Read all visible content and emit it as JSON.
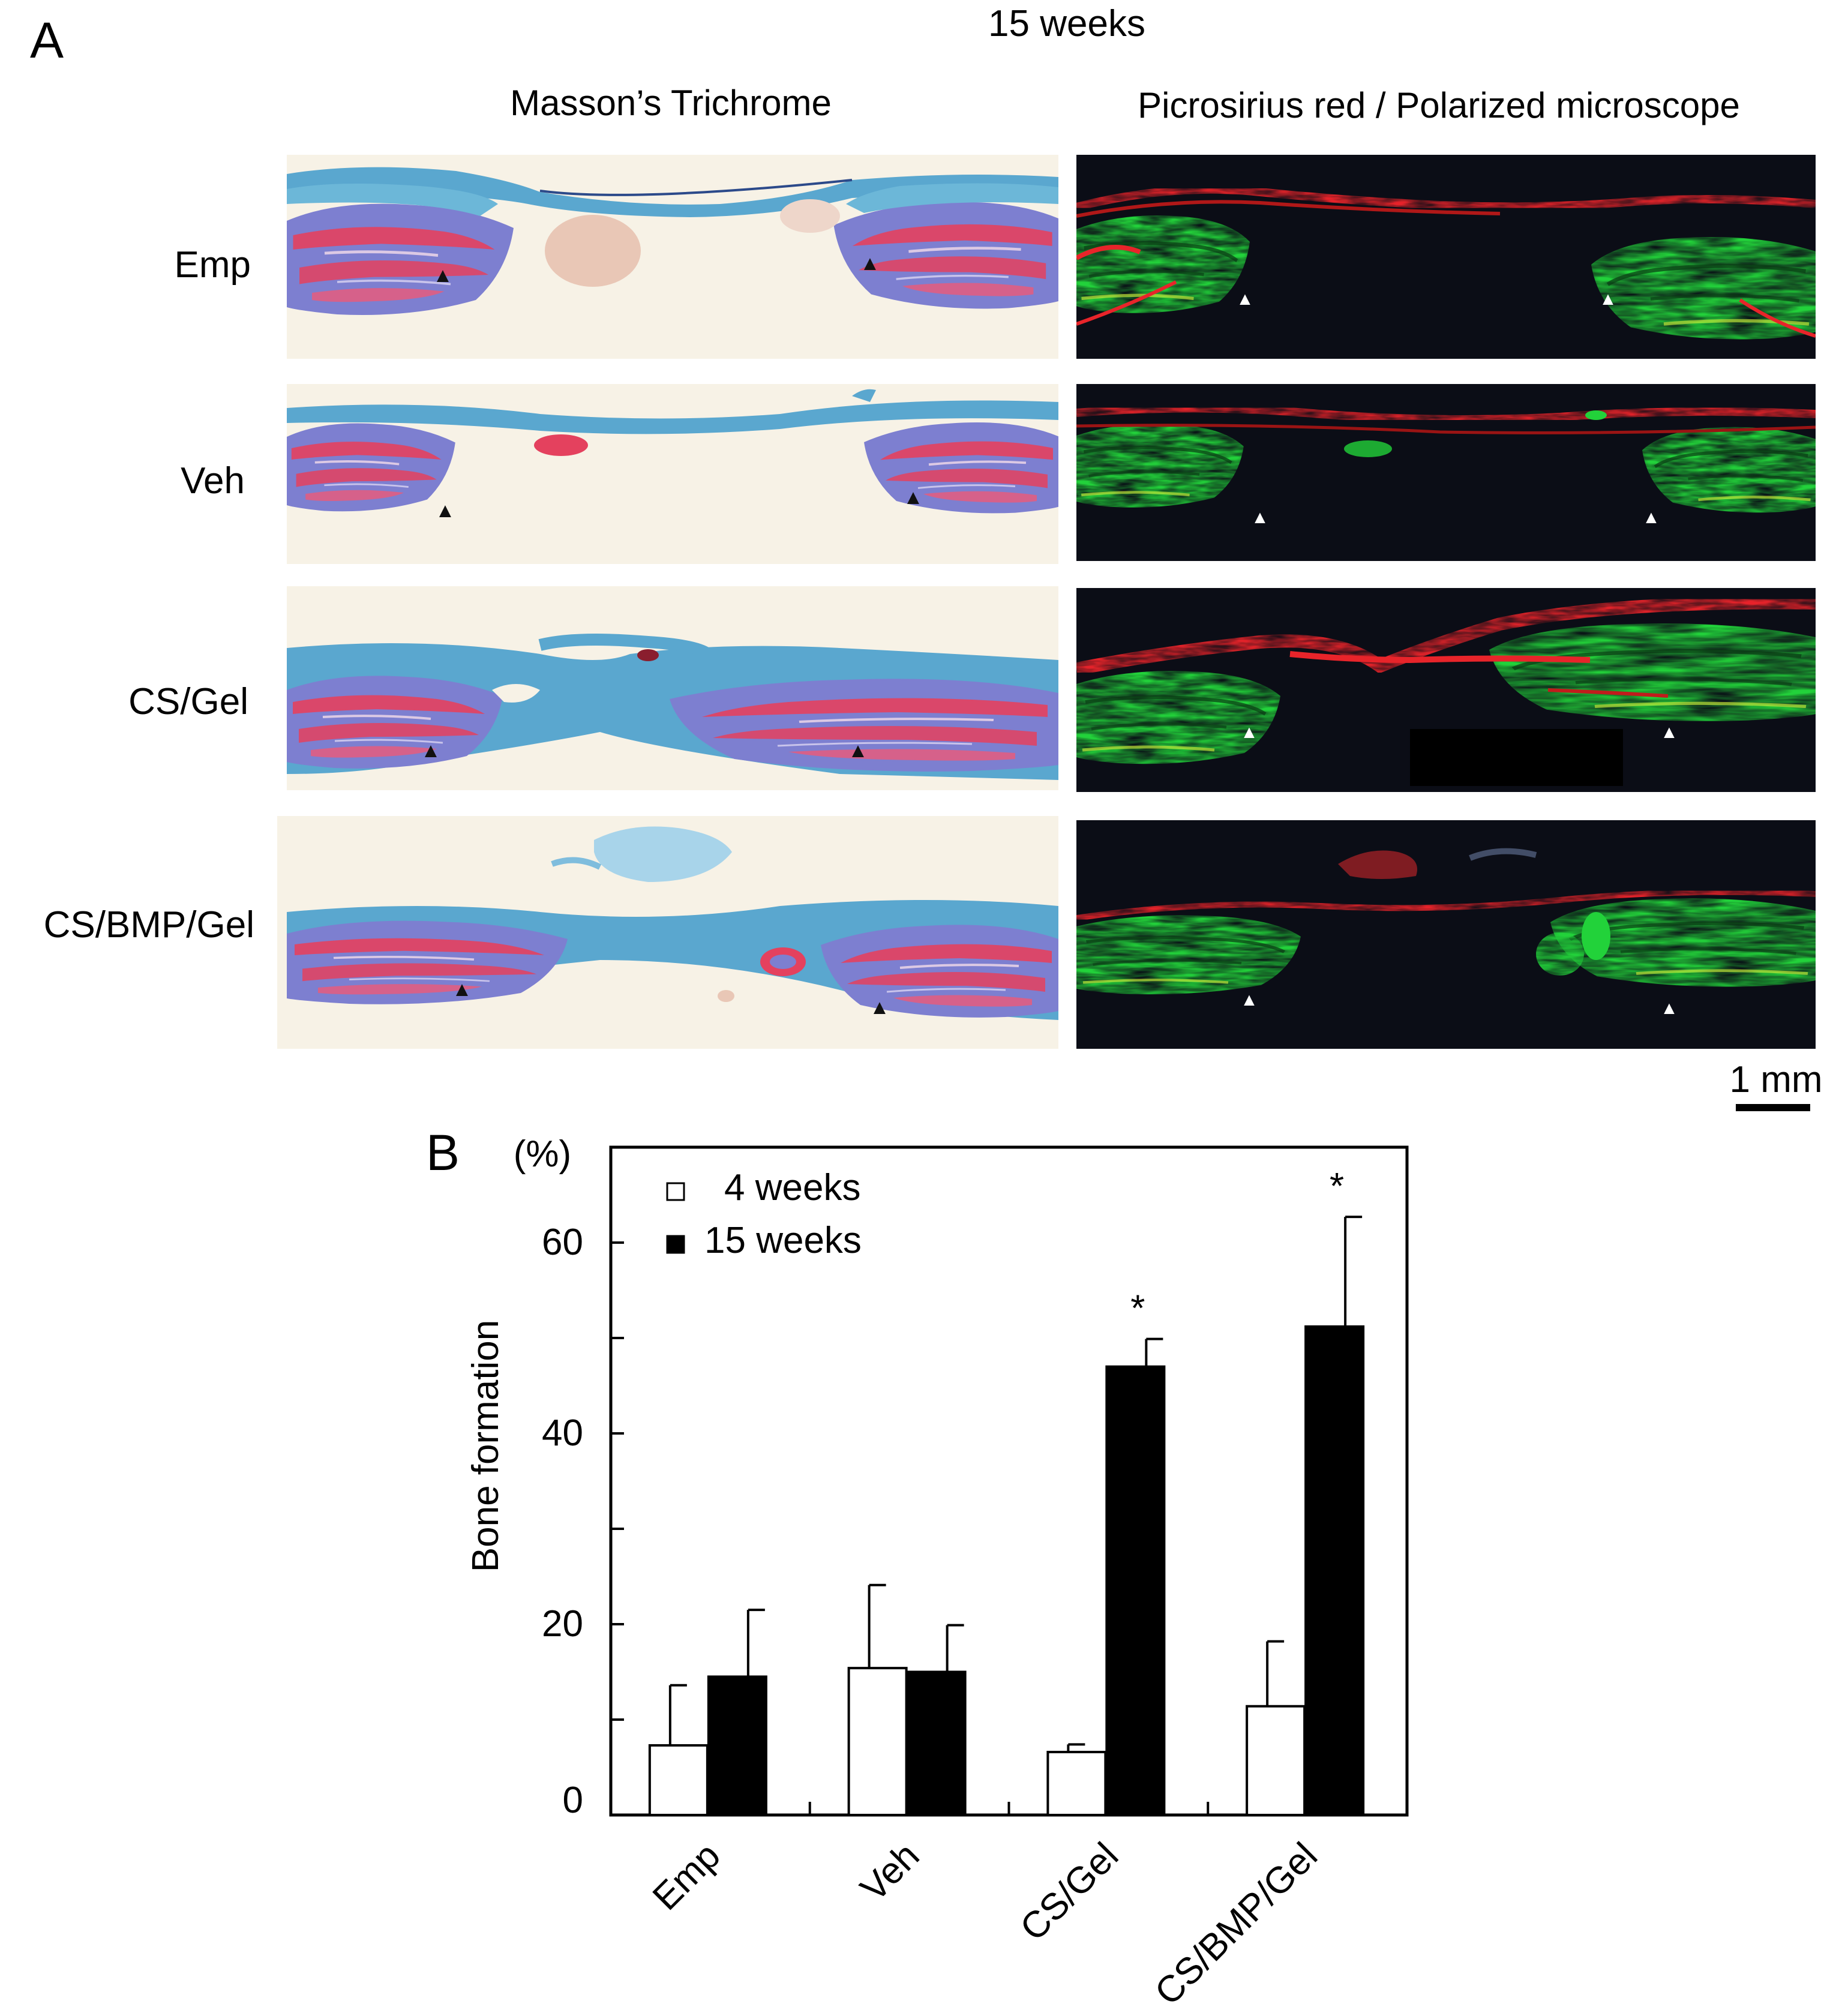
{
  "panel_a": {
    "label": "A",
    "timepoint": "15 weeks",
    "columns": [
      "Masson’s Trichrome",
      "Picrosirius red / Polarized microscope"
    ],
    "rows": [
      "Emp",
      "Veh",
      "CS/Gel",
      "CS/BMP/Gel"
    ],
    "scale_bar": "1 mm",
    "colors": {
      "trichrome_bg": "#f7f2e6",
      "trichrome_collagen": "#5aa7cf",
      "trichrome_bone_blue": "#7d7fd0",
      "trichrome_bone_red": "#e4415e",
      "polar_bg": "#0b0d16",
      "polar_green": "#22d23a",
      "polar_red": "#e8242a"
    }
  },
  "panel_b": {
    "label": "B",
    "chart_data": {
      "type": "bar",
      "categories": [
        "Emp",
        "Veh",
        "CS/Gel",
        "CS/BMP/Gel"
      ],
      "series": [
        {
          "name": "4 weeks",
          "color": "#ffffff",
          "values": [
            7.3,
            15.4,
            6.6,
            11.4
          ],
          "errors": [
            6.3,
            8.7,
            0.8,
            6.8
          ]
        },
        {
          "name": "15 weeks",
          "color": "#000000",
          "values": [
            14.5,
            15.0,
            47.0,
            51.2
          ],
          "errors": [
            7.0,
            4.9,
            2.9,
            11.5
          ]
        }
      ],
      "significance": [
        {
          "category": "CS/Gel",
          "series": "15 weeks",
          "mark": "*"
        },
        {
          "category": "CS/BMP/Gel",
          "series": "15 weeks",
          "mark": "*"
        }
      ],
      "yticks": [
        "0",
        "20",
        "40",
        "60"
      ],
      "ylim": [
        0,
        70
      ],
      "ylabel": "Bone formation",
      "yunit": "(%)",
      "xlabel": "",
      "legend_position": "top-left"
    }
  }
}
